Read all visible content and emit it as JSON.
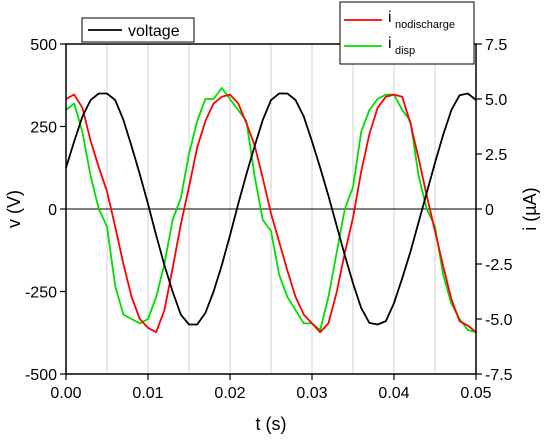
{
  "chart_data": {
    "type": "line",
    "xlabel": "t (s)",
    "ylabel_left": "v (V)",
    "ylabel_right": "i (µA)",
    "xlim": [
      0,
      0.05
    ],
    "ylim_left": [
      -500,
      500
    ],
    "ylim_right": [
      -7.5,
      7.5
    ],
    "x_ticks": [
      0.0,
      0.01,
      0.02,
      0.03,
      0.04,
      0.05
    ],
    "x_tick_labels": [
      "0.00",
      "0.01",
      "0.02",
      "0.03",
      "0.04",
      "0.05"
    ],
    "y_left_ticks": [
      500,
      250,
      0,
      -250,
      -500
    ],
    "y_left_tick_labels": [
      "500",
      "250",
      "0",
      "-250",
      "-500"
    ],
    "y_right_ticks": [
      7.5,
      5.0,
      2.5,
      0,
      -2.5,
      -5.0,
      -7.5
    ],
    "y_right_tick_labels": [
      "7.5",
      "5.0",
      "2.5",
      "0",
      "-2.5",
      "-5.0",
      "-7.5"
    ],
    "grid_x": [
      0.005,
      0.01,
      0.015,
      0.02,
      0.025,
      0.03,
      0.035,
      0.04,
      0.045
    ],
    "legends": {
      "left": [
        {
          "name": "voltage",
          "color": "#000000"
        }
      ],
      "right": [
        {
          "main": "i",
          "sub": "nodischarge",
          "color": "#ff0000"
        },
        {
          "main": "i",
          "sub": "disp",
          "color": "#00dd00"
        }
      ]
    },
    "series": [
      {
        "key": "voltage",
        "axis": "left",
        "color": "#000000",
        "x": [
          0.0,
          0.001,
          0.002,
          0.003,
          0.004,
          0.005,
          0.006,
          0.007,
          0.008,
          0.009,
          0.01,
          0.011,
          0.012,
          0.013,
          0.014,
          0.015,
          0.016,
          0.017,
          0.018,
          0.019,
          0.02,
          0.021,
          0.022,
          0.023,
          0.024,
          0.025,
          0.026,
          0.027,
          0.028,
          0.029,
          0.03,
          0.031,
          0.032,
          0.033,
          0.034,
          0.035,
          0.036,
          0.037,
          0.038,
          0.039,
          0.04,
          0.041,
          0.042,
          0.043,
          0.044,
          0.045,
          0.046,
          0.047,
          0.048,
          0.049,
          0.05
        ],
        "y": [
          125,
          205,
          280,
          330,
          350,
          350,
          330,
          270,
          190,
          105,
          15,
          -80,
          -170,
          -250,
          -320,
          -350,
          -350,
          -315,
          -250,
          -170,
          -80,
          15,
          105,
          190,
          270,
          330,
          350,
          350,
          330,
          280,
          205,
          125,
          40,
          -50,
          -140,
          -225,
          -300,
          -345,
          -350,
          -340,
          -285,
          -210,
          -130,
          -40,
          50,
          140,
          225,
          300,
          345,
          350,
          330
        ]
      },
      {
        "key": "i_nodischarge",
        "axis": "right",
        "color": "#ff0000",
        "x": [
          0.0,
          0.001,
          0.002,
          0.003,
          0.004,
          0.005,
          0.006,
          0.007,
          0.008,
          0.009,
          0.01,
          0.011,
          0.012,
          0.013,
          0.014,
          0.015,
          0.016,
          0.017,
          0.018,
          0.019,
          0.02,
          0.021,
          0.022,
          0.023,
          0.024,
          0.025,
          0.026,
          0.027,
          0.028,
          0.029,
          0.03,
          0.031,
          0.032,
          0.033,
          0.034,
          0.035,
          0.036,
          0.037,
          0.038,
          0.039,
          0.04,
          0.041,
          0.042,
          0.043,
          0.044,
          0.045,
          0.046,
          0.047,
          0.048,
          0.049,
          0.05
        ],
        "y": [
          5.0,
          5.2,
          4.6,
          3.1,
          1.9,
          0.8,
          -0.8,
          -2.5,
          -4.0,
          -5.0,
          -5.4,
          -5.6,
          -4.6,
          -2.7,
          -0.7,
          1.0,
          2.8,
          4.0,
          4.8,
          5.1,
          5.2,
          4.8,
          3.9,
          2.9,
          1.4,
          -0.2,
          -1.5,
          -2.8,
          -4.0,
          -4.8,
          -5.2,
          -5.6,
          -5.2,
          -3.8,
          -2.0,
          -0.4,
          1.7,
          3.4,
          4.6,
          5.1,
          5.2,
          5.1,
          3.9,
          2.3,
          0.6,
          -1.0,
          -2.6,
          -4.1,
          -5.1,
          -5.3,
          -5.6
        ]
      },
      {
        "key": "i_disp",
        "axis": "right",
        "color": "#00dd00",
        "x": [
          0.0,
          0.001,
          0.002,
          0.003,
          0.004,
          0.005,
          0.006,
          0.007,
          0.008,
          0.009,
          0.01,
          0.011,
          0.012,
          0.013,
          0.014,
          0.015,
          0.016,
          0.017,
          0.018,
          0.019,
          0.02,
          0.021,
          0.022,
          0.023,
          0.024,
          0.025,
          0.026,
          0.027,
          0.028,
          0.029,
          0.03,
          0.031,
          0.032,
          0.033,
          0.034,
          0.035,
          0.036,
          0.037,
          0.038,
          0.039,
          0.04,
          0.041,
          0.042,
          0.043,
          0.044,
          0.045,
          0.046,
          0.047,
          0.048,
          0.049,
          0.05
        ],
        "y": [
          4.5,
          4.8,
          3.5,
          1.5,
          0.0,
          -0.8,
          -3.5,
          -4.8,
          -5.0,
          -5.2,
          -5.0,
          -4.0,
          -2.5,
          -0.5,
          0.5,
          2.5,
          4.0,
          5.0,
          5.0,
          5.5,
          5.0,
          4.5,
          4.0,
          1.5,
          -0.5,
          -1.0,
          -3.0,
          -4.0,
          -4.6,
          -5.2,
          -5.2,
          -5.5,
          -4.0,
          -2.0,
          0.0,
          1.0,
          3.5,
          4.5,
          5.0,
          5.2,
          5.2,
          4.5,
          4.0,
          1.5,
          0.0,
          -0.8,
          -3.0,
          -4.3,
          -5.0,
          -5.5,
          -5.6
        ]
      }
    ]
  }
}
